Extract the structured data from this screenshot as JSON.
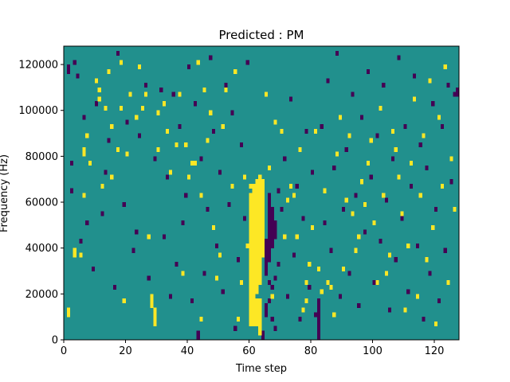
{
  "chart_data": {
    "type": "heatmap",
    "title": "Predicted : PM",
    "xlabel": "Time step",
    "ylabel": "Frequency (Hz)",
    "xlim": [
      0,
      128
    ],
    "ylim": [
      0,
      128000
    ],
    "x_ticks": [
      0,
      20,
      40,
      60,
      80,
      100,
      120
    ],
    "y_ticks": [
      0,
      20000,
      40000,
      60000,
      80000,
      100000,
      120000
    ],
    "grid": false,
    "legend": "none",
    "grid_size": {
      "columns": 128,
      "rows": 64,
      "row_height_hz": 2000
    },
    "colors": {
      "background": "#21908d",
      "low": "#440154",
      "high": "#fde725"
    },
    "levels": {
      "background": 0,
      "low": -1,
      "high": 1
    },
    "high_cells": [
      [
        1,
        5
      ],
      [
        1,
        6
      ],
      [
        3,
        18
      ],
      [
        3,
        19
      ],
      [
        5,
        18
      ],
      [
        6,
        31
      ],
      [
        6,
        40
      ],
      [
        6,
        41
      ],
      [
        7,
        44
      ],
      [
        8,
        38
      ],
      [
        10,
        56
      ],
      [
        11,
        54
      ],
      [
        11,
        52
      ],
      [
        12,
        33
      ],
      [
        13,
        50
      ],
      [
        14,
        58
      ],
      [
        15,
        46
      ],
      [
        15,
        35
      ],
      [
        17,
        41
      ],
      [
        18,
        60
      ],
      [
        18,
        50
      ],
      [
        19,
        8
      ],
      [
        20,
        40
      ],
      [
        21,
        53
      ],
      [
        23,
        48
      ],
      [
        24,
        59
      ],
      [
        25,
        50
      ],
      [
        26,
        53
      ],
      [
        27,
        22
      ],
      [
        28,
        7
      ],
      [
        28,
        8
      ],
      [
        28,
        9
      ],
      [
        29,
        3
      ],
      [
        29,
        4
      ],
      [
        29,
        5
      ],
      [
        29,
        6
      ],
      [
        30,
        41
      ],
      [
        30,
        49
      ],
      [
        32,
        51
      ],
      [
        33,
        45
      ],
      [
        34,
        36
      ],
      [
        36,
        42
      ],
      [
        37,
        53
      ],
      [
        38,
        14
      ],
      [
        39,
        42
      ],
      [
        40,
        35
      ],
      [
        41,
        38
      ],
      [
        42,
        38
      ],
      [
        43,
        60
      ],
      [
        44,
        4
      ],
      [
        44,
        31
      ],
      [
        45,
        54
      ],
      [
        46,
        43
      ],
      [
        47,
        49
      ],
      [
        48,
        24
      ],
      [
        49,
        13
      ],
      [
        50,
        18
      ],
      [
        51,
        46
      ],
      [
        52,
        54
      ],
      [
        54,
        33
      ],
      [
        55,
        58
      ],
      [
        56,
        4
      ],
      [
        57,
        12
      ],
      [
        58,
        35
      ],
      [
        59,
        20
      ],
      [
        60,
        3
      ],
      [
        60,
        4
      ],
      [
        60,
        5
      ],
      [
        60,
        6
      ],
      [
        60,
        7
      ],
      [
        60,
        8
      ],
      [
        60,
        9
      ],
      [
        60,
        10
      ],
      [
        60,
        11
      ],
      [
        60,
        12
      ],
      [
        60,
        13
      ],
      [
        60,
        14
      ],
      [
        60,
        15
      ],
      [
        60,
        16
      ],
      [
        60,
        17
      ],
      [
        60,
        18
      ],
      [
        60,
        19
      ],
      [
        60,
        20
      ],
      [
        60,
        21
      ],
      [
        60,
        22
      ],
      [
        60,
        23
      ],
      [
        60,
        24
      ],
      [
        60,
        25
      ],
      [
        60,
        26
      ],
      [
        60,
        27
      ],
      [
        60,
        28
      ],
      [
        60,
        29
      ],
      [
        60,
        30
      ],
      [
        60,
        31
      ],
      [
        60,
        33
      ],
      [
        61,
        3
      ],
      [
        61,
        4
      ],
      [
        61,
        5
      ],
      [
        61,
        6
      ],
      [
        61,
        7
      ],
      [
        61,
        8
      ],
      [
        61,
        9
      ],
      [
        61,
        10
      ],
      [
        61,
        11
      ],
      [
        61,
        12
      ],
      [
        61,
        13
      ],
      [
        61,
        14
      ],
      [
        61,
        15
      ],
      [
        61,
        16
      ],
      [
        61,
        17
      ],
      [
        61,
        18
      ],
      [
        61,
        19
      ],
      [
        61,
        20
      ],
      [
        61,
        21
      ],
      [
        61,
        22
      ],
      [
        61,
        23
      ],
      [
        61,
        24
      ],
      [
        61,
        25
      ],
      [
        61,
        26
      ],
      [
        61,
        27
      ],
      [
        61,
        28
      ],
      [
        61,
        29
      ],
      [
        61,
        30
      ],
      [
        61,
        31
      ],
      [
        61,
        32
      ],
      [
        61,
        33
      ],
      [
        62,
        3
      ],
      [
        62,
        4
      ],
      [
        62,
        5
      ],
      [
        62,
        6
      ],
      [
        62,
        7
      ],
      [
        62,
        8
      ],
      [
        62,
        10
      ],
      [
        62,
        11
      ],
      [
        62,
        12
      ],
      [
        62,
        13
      ],
      [
        62,
        14
      ],
      [
        62,
        15
      ],
      [
        62,
        16
      ],
      [
        62,
        17
      ],
      [
        62,
        18
      ],
      [
        62,
        19
      ],
      [
        62,
        20
      ],
      [
        62,
        21
      ],
      [
        62,
        22
      ],
      [
        62,
        23
      ],
      [
        62,
        24
      ],
      [
        62,
        25
      ],
      [
        62,
        26
      ],
      [
        62,
        27
      ],
      [
        62,
        28
      ],
      [
        62,
        29
      ],
      [
        62,
        30
      ],
      [
        62,
        31
      ],
      [
        62,
        32
      ],
      [
        62,
        33
      ],
      [
        62,
        34
      ],
      [
        63,
        1
      ],
      [
        63,
        2
      ],
      [
        63,
        3
      ],
      [
        63,
        4
      ],
      [
        63,
        5
      ],
      [
        63,
        6
      ],
      [
        63,
        7
      ],
      [
        63,
        8
      ],
      [
        63,
        12
      ],
      [
        63,
        13
      ],
      [
        63,
        14
      ],
      [
        63,
        15
      ],
      [
        63,
        16
      ],
      [
        63,
        17
      ],
      [
        63,
        18
      ],
      [
        63,
        19
      ],
      [
        63,
        20
      ],
      [
        63,
        21
      ],
      [
        63,
        22
      ],
      [
        63,
        23
      ],
      [
        63,
        24
      ],
      [
        63,
        25
      ],
      [
        63,
        26
      ],
      [
        63,
        27
      ],
      [
        63,
        28
      ],
      [
        63,
        29
      ],
      [
        63,
        30
      ],
      [
        63,
        31
      ],
      [
        63,
        32
      ],
      [
        63,
        33
      ],
      [
        63,
        34
      ],
      [
        63,
        35
      ],
      [
        64,
        18
      ],
      [
        64,
        19
      ],
      [
        64,
        20
      ],
      [
        64,
        21
      ],
      [
        64,
        22
      ],
      [
        64,
        23
      ],
      [
        64,
        24
      ],
      [
        64,
        25
      ],
      [
        64,
        26
      ],
      [
        64,
        27
      ],
      [
        64,
        28
      ],
      [
        64,
        29
      ],
      [
        64,
        30
      ],
      [
        64,
        31
      ],
      [
        64,
        32
      ],
      [
        64,
        33
      ],
      [
        64,
        34
      ],
      [
        65,
        53
      ],
      [
        66,
        37
      ],
      [
        67,
        9
      ],
      [
        68,
        47
      ],
      [
        70,
        45
      ],
      [
        71,
        22
      ],
      [
        72,
        30
      ],
      [
        73,
        33
      ],
      [
        74,
        31
      ],
      [
        75,
        22
      ],
      [
        76,
        41
      ],
      [
        77,
        6
      ],
      [
        78,
        8
      ],
      [
        78,
        12
      ],
      [
        79,
        16
      ],
      [
        80,
        24
      ],
      [
        81,
        45
      ],
      [
        82,
        15
      ],
      [
        83,
        10
      ],
      [
        84,
        32
      ],
      [
        85,
        12
      ],
      [
        86,
        11
      ],
      [
        87,
        5
      ],
      [
        88,
        40
      ],
      [
        89,
        48
      ],
      [
        90,
        15
      ],
      [
        91,
        30
      ],
      [
        92,
        44
      ],
      [
        93,
        27
      ],
      [
        94,
        19
      ],
      [
        95,
        22
      ],
      [
        96,
        34
      ],
      [
        97,
        29
      ],
      [
        98,
        38
      ],
      [
        99,
        43
      ],
      [
        100,
        25
      ],
      [
        101,
        12
      ],
      [
        102,
        50
      ],
      [
        103,
        31
      ],
      [
        104,
        14
      ],
      [
        105,
        18
      ],
      [
        106,
        45
      ],
      [
        107,
        41
      ],
      [
        108,
        35
      ],
      [
        109,
        27
      ],
      [
        110,
        6
      ],
      [
        111,
        20
      ],
      [
        112,
        38
      ],
      [
        113,
        52
      ],
      [
        114,
        9
      ],
      [
        115,
        31
      ],
      [
        116,
        44
      ],
      [
        117,
        17
      ],
      [
        118,
        56
      ],
      [
        119,
        24
      ],
      [
        120,
        3
      ],
      [
        121,
        48
      ],
      [
        122,
        33
      ],
      [
        123,
        59
      ],
      [
        124,
        12
      ],
      [
        125,
        39
      ],
      [
        126,
        28
      ]
    ],
    "low_cells": [
      [
        1,
        58
      ],
      [
        1,
        59
      ],
      [
        2,
        32
      ],
      [
        2,
        38
      ],
      [
        3,
        60
      ],
      [
        4,
        57
      ],
      [
        5,
        21
      ],
      [
        6,
        48
      ],
      [
        7,
        25
      ],
      [
        9,
        15
      ],
      [
        10,
        51
      ],
      [
        12,
        27
      ],
      [
        13,
        36
      ],
      [
        14,
        43
      ],
      [
        16,
        11
      ],
      [
        17,
        62
      ],
      [
        19,
        29
      ],
      [
        20,
        47
      ],
      [
        22,
        19
      ],
      [
        23,
        23
      ],
      [
        24,
        44
      ],
      [
        26,
        55
      ],
      [
        27,
        13
      ],
      [
        29,
        39
      ],
      [
        31,
        54
      ],
      [
        32,
        22
      ],
      [
        33,
        35
      ],
      [
        34,
        9
      ],
      [
        35,
        53
      ],
      [
        36,
        16
      ],
      [
        37,
        46
      ],
      [
        38,
        25
      ],
      [
        39,
        31
      ],
      [
        40,
        59
      ],
      [
        41,
        8
      ],
      [
        42,
        51
      ],
      [
        43,
        0
      ],
      [
        43,
        1
      ],
      [
        44,
        39
      ],
      [
        45,
        14
      ],
      [
        46,
        28
      ],
      [
        47,
        61
      ],
      [
        48,
        45
      ],
      [
        49,
        20
      ],
      [
        50,
        36
      ],
      [
        51,
        10
      ],
      [
        52,
        55
      ],
      [
        53,
        29
      ],
      [
        54,
        49
      ],
      [
        55,
        2
      ],
      [
        56,
        17
      ],
      [
        57,
        42
      ],
      [
        58,
        26
      ],
      [
        59,
        60
      ],
      [
        64,
        0
      ],
      [
        64,
        1
      ],
      [
        65,
        5
      ],
      [
        65,
        6
      ],
      [
        65,
        7
      ],
      [
        65,
        14
      ],
      [
        65,
        15
      ],
      [
        65,
        16
      ],
      [
        65,
        17
      ],
      [
        65,
        18
      ],
      [
        65,
        19
      ],
      [
        65,
        20
      ],
      [
        65,
        21
      ],
      [
        66,
        8
      ],
      [
        66,
        12
      ],
      [
        66,
        17
      ],
      [
        66,
        18
      ],
      [
        66,
        19
      ],
      [
        66,
        20
      ],
      [
        66,
        21
      ],
      [
        66,
        22
      ],
      [
        66,
        23
      ],
      [
        66,
        24
      ],
      [
        66,
        25
      ],
      [
        66,
        26
      ],
      [
        66,
        27
      ],
      [
        66,
        28
      ],
      [
        66,
        29
      ],
      [
        66,
        30
      ],
      [
        66,
        31
      ],
      [
        67,
        4
      ],
      [
        67,
        11
      ],
      [
        67,
        20
      ],
      [
        67,
        21
      ],
      [
        67,
        22
      ],
      [
        67,
        23
      ],
      [
        67,
        24
      ],
      [
        67,
        25
      ],
      [
        67,
        26
      ],
      [
        67,
        27
      ],
      [
        67,
        28
      ],
      [
        68,
        2
      ],
      [
        68,
        13
      ],
      [
        68,
        22
      ],
      [
        68,
        23
      ],
      [
        68,
        24
      ],
      [
        68,
        25
      ],
      [
        69,
        16
      ],
      [
        69,
        32
      ],
      [
        70,
        28
      ],
      [
        71,
        39
      ],
      [
        72,
        9
      ],
      [
        73,
        52
      ],
      [
        74,
        18
      ],
      [
        75,
        33
      ],
      [
        76,
        4
      ],
      [
        77,
        26
      ],
      [
        78,
        45
      ],
      [
        79,
        11
      ],
      [
        80,
        36
      ],
      [
        81,
        5
      ],
      [
        82,
        0
      ],
      [
        82,
        1
      ],
      [
        82,
        2
      ],
      [
        82,
        3
      ],
      [
        82,
        4
      ],
      [
        82,
        5
      ],
      [
        82,
        6
      ],
      [
        82,
        7
      ],
      [
        82,
        8
      ],
      [
        83,
        46
      ],
      [
        84,
        25
      ],
      [
        85,
        56
      ],
      [
        86,
        19
      ],
      [
        87,
        37
      ],
      [
        88,
        62
      ],
      [
        89,
        9
      ],
      [
        90,
        28
      ],
      [
        91,
        41
      ],
      [
        92,
        14
      ],
      [
        93,
        53
      ],
      [
        94,
        31
      ],
      [
        95,
        7
      ],
      [
        96,
        48
      ],
      [
        97,
        23
      ],
      [
        98,
        58
      ],
      [
        99,
        35
      ],
      [
        100,
        12
      ],
      [
        101,
        44
      ],
      [
        102,
        21
      ],
      [
        103,
        55
      ],
      [
        104,
        30
      ],
      [
        105,
        6
      ],
      [
        106,
        39
      ],
      [
        107,
        17
      ],
      [
        108,
        61
      ],
      [
        109,
        26
      ],
      [
        110,
        46
      ],
      [
        111,
        10
      ],
      [
        112,
        33
      ],
      [
        113,
        57
      ],
      [
        114,
        20
      ],
      [
        115,
        42
      ],
      [
        116,
        4
      ],
      [
        117,
        37
      ],
      [
        118,
        14
      ],
      [
        119,
        51
      ],
      [
        120,
        28
      ],
      [
        121,
        8
      ],
      [
        122,
        46
      ],
      [
        123,
        19
      ],
      [
        124,
        55
      ],
      [
        125,
        34
      ],
      [
        126,
        53
      ],
      [
        127,
        53
      ],
      [
        127,
        54
      ]
    ]
  }
}
